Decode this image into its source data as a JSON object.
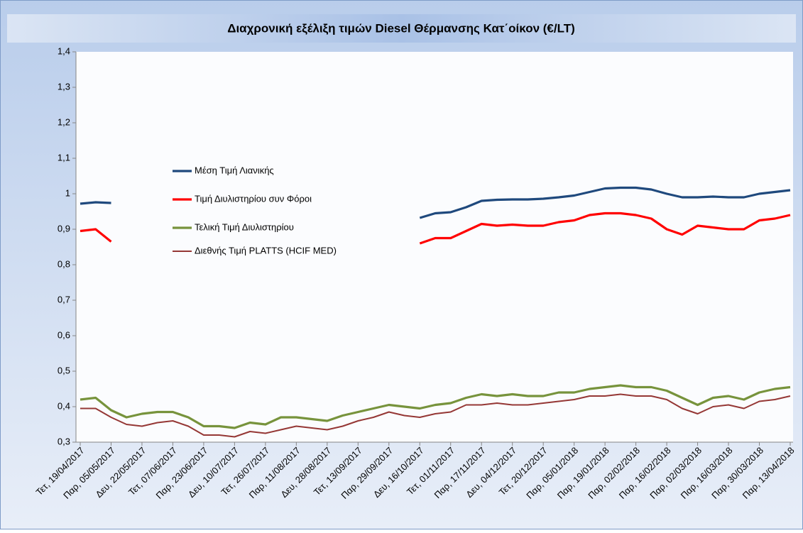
{
  "chart_data": {
    "type": "line",
    "title": "Διαχρονική εξέλιξη τιμών Diesel Θέρμανσης Κατ΄οίκον (€/LT)",
    "categories": [
      "Τετ, 19/04/2017",
      null,
      "Παρ, 05/05/2017",
      null,
      "Δευ, 22/05/2017",
      null,
      "Τετ, 07/06/2017",
      null,
      "Παρ, 23/06/2017",
      null,
      "Δευ, 10/07/2017",
      null,
      "Τετ, 26/07/2017",
      null,
      "Παρ, 11/08/2017",
      null,
      "Δευ, 28/08/2017",
      null,
      "Τετ, 13/09/2017",
      null,
      "Παρ, 29/09/2017",
      null,
      "Δευ, 16/10/2017",
      null,
      "Τετ, 01/11/2017",
      null,
      "Παρ, 17/11/2017",
      null,
      "Δευ, 04/12/2017",
      null,
      "Τετ, 20/12/2017",
      null,
      "Παρ, 05/01/2018",
      null,
      "Παρ, 19/01/2018",
      null,
      "Παρ, 02/02/2018",
      null,
      "Παρ, 16/02/2018",
      null,
      "Παρ, 02/03/2018",
      null,
      "Παρ, 16/03/2018",
      null,
      "Παρ, 30/03/2018",
      null,
      "Παρ, 13/04/2018"
    ],
    "series": [
      {
        "name": "Μέση Τιμή Λιανικής",
        "color": "#1f497d",
        "values": [
          0.972,
          0.976,
          0.974,
          null,
          null,
          null,
          null,
          null,
          null,
          null,
          null,
          null,
          null,
          null,
          null,
          null,
          null,
          null,
          null,
          null,
          null,
          null,
          0.932,
          0.945,
          0.948,
          0.962,
          0.98,
          0.983,
          0.984,
          0.984,
          0.986,
          0.99,
          0.995,
          1.005,
          1.015,
          1.017,
          1.017,
          1.012,
          1.0,
          0.99,
          0.99,
          0.992,
          0.99,
          0.99,
          1.0,
          1.005,
          1.01
        ]
      },
      {
        "name": "Τιμή Διυλιστηρίου συν Φόροι",
        "color": "#ff0000",
        "values": [
          0.895,
          0.9,
          0.865,
          null,
          null,
          null,
          null,
          null,
          null,
          null,
          null,
          null,
          null,
          null,
          null,
          null,
          null,
          null,
          null,
          null,
          null,
          null,
          0.86,
          0.875,
          0.875,
          0.895,
          0.915,
          0.91,
          0.913,
          0.91,
          0.91,
          0.92,
          0.925,
          0.94,
          0.945,
          0.945,
          0.94,
          0.93,
          0.9,
          0.885,
          0.91,
          0.905,
          0.9,
          0.9,
          0.925,
          0.93,
          0.94
        ]
      },
      {
        "name": "Τελική Τιμή Διυλιστηρίου",
        "color": "#77933c",
        "values": [
          0.42,
          0.425,
          0.39,
          0.37,
          0.38,
          0.385,
          0.385,
          0.37,
          0.345,
          0.345,
          0.34,
          0.355,
          0.35,
          0.37,
          0.37,
          0.365,
          0.36,
          0.375,
          0.385,
          0.395,
          0.405,
          0.4,
          0.395,
          0.405,
          0.41,
          0.425,
          0.435,
          0.43,
          0.435,
          0.43,
          0.43,
          0.44,
          0.44,
          0.45,
          0.455,
          0.46,
          0.455,
          0.455,
          0.445,
          0.425,
          0.405,
          0.425,
          0.43,
          0.42,
          0.44,
          0.45,
          0.455
        ]
      },
      {
        "name": "Διεθνής Τιμή PLATTS (HCIF MED)",
        "color": "#953735",
        "values": [
          0.395,
          0.395,
          0.37,
          0.35,
          0.345,
          0.355,
          0.36,
          0.345,
          0.32,
          0.32,
          0.315,
          0.33,
          0.325,
          0.335,
          0.345,
          0.34,
          0.335,
          0.345,
          0.36,
          0.37,
          0.385,
          0.375,
          0.37,
          0.38,
          0.385,
          0.405,
          0.405,
          0.41,
          0.405,
          0.405,
          0.41,
          0.415,
          0.42,
          0.43,
          0.43,
          0.435,
          0.43,
          0.43,
          0.42,
          0.395,
          0.38,
          0.4,
          0.405,
          0.395,
          0.415,
          0.42,
          0.43
        ]
      }
    ],
    "ylim": [
      0.3,
      1.4
    ],
    "yticks": [
      {
        "value": 0.3,
        "label": "0,3"
      },
      {
        "value": 0.4,
        "label": "0,4"
      },
      {
        "value": 0.5,
        "label": "0,5"
      },
      {
        "value": 0.6,
        "label": "0,6"
      },
      {
        "value": 0.7,
        "label": "0,7"
      },
      {
        "value": 0.8,
        "label": "0,8"
      },
      {
        "value": 0.9,
        "label": "0,9"
      },
      1,
      {
        "value": 1.1,
        "label": "1,1"
      },
      {
        "value": 1.2,
        "label": "1,2"
      },
      {
        "value": 1.3,
        "label": "1,3"
      },
      {
        "value": 1.4,
        "label": "1,4"
      }
    ],
    "grid": false,
    "legend": "left"
  }
}
